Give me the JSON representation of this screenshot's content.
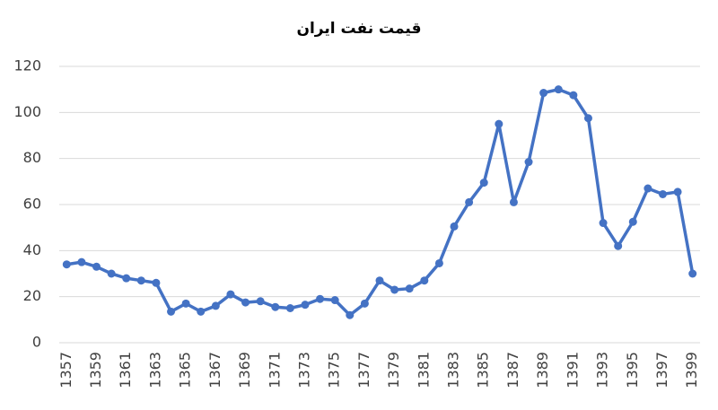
{
  "chart_data": {
    "type": "line",
    "title": "قیمت نفت ایران",
    "categories": [
      "1357",
      null,
      "1359",
      null,
      "1361",
      null,
      "1363",
      null,
      "1365",
      null,
      "1367",
      null,
      "1369",
      null,
      "1371",
      null,
      "1373",
      null,
      "1375",
      null,
      "1377",
      null,
      "1379",
      null,
      "1381",
      null,
      "1383",
      null,
      "1385",
      null,
      "1387",
      null,
      "1389",
      null,
      "1391",
      null,
      "1393",
      null,
      "1395",
      null,
      "1397",
      null,
      "1399"
    ],
    "series": [
      {
        "name": null,
        "color": "#4472c4",
        "values": [
          34,
          35,
          33,
          30,
          28,
          27,
          26,
          13.5,
          17,
          13.5,
          16,
          21,
          17.5,
          18,
          15.5,
          15,
          16.5,
          19,
          18.5,
          12,
          17,
          27,
          23,
          23.5,
          27,
          34.5,
          50.5,
          61,
          69.5,
          95,
          61,
          78.5,
          108.5,
          110,
          107.5,
          97.5,
          52,
          42,
          52.5,
          67,
          64.5,
          65.5,
          30
        ]
      }
    ],
    "ylim": [
      0,
      120
    ],
    "yticks": [
      0,
      20,
      40,
      60,
      80,
      100,
      120
    ],
    "grid": true
  }
}
